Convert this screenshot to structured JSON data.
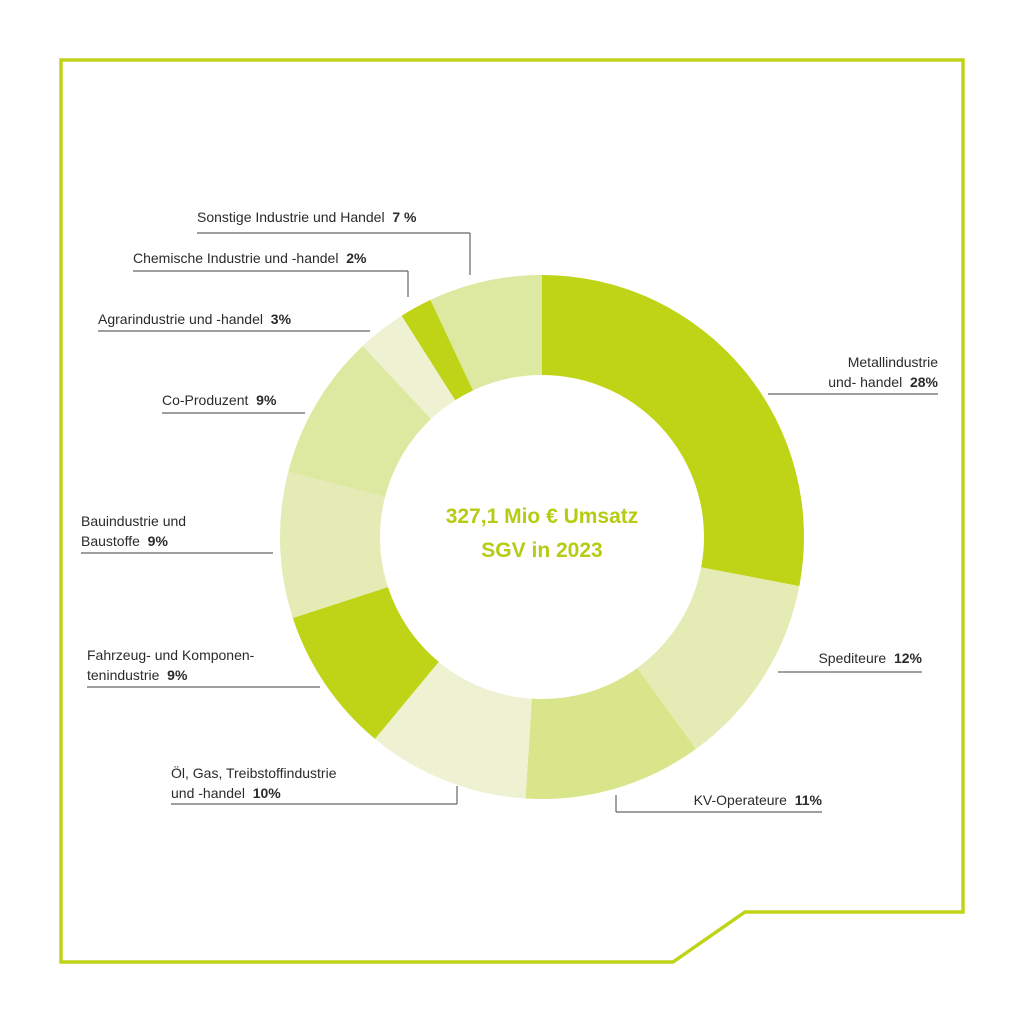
{
  "chart_data": {
    "type": "pie",
    "variant": "donut",
    "center_text": [
      "327,1 Mio € Umsatz",
      "SGV in 2023"
    ],
    "unit": "%",
    "slices": [
      {
        "label_lines": [
          "Metallindustrie",
          "und- handel"
        ],
        "pct_text": "28%",
        "value": 28,
        "color": "#bfd417"
      },
      {
        "label_lines": [
          "Spediteure"
        ],
        "pct_text": "12%",
        "value": 12,
        "color": "#e5ebb4"
      },
      {
        "label_lines": [
          "KV-Operateure"
        ],
        "pct_text": "11%",
        "value": 11,
        "color": "#d8e58a"
      },
      {
        "label_lines": [
          "Öl, Gas, Treibstoffindustrie",
          "und -handel"
        ],
        "pct_text": "10%",
        "value": 10,
        "color": "#eef2d2"
      },
      {
        "label_lines": [
          "Fahrzeug- und Komponen-",
          "tenindustrie"
        ],
        "pct_text": "9%",
        "value": 9,
        "color": "#bfd417"
      },
      {
        "label_lines": [
          "Bauindustrie und",
          "Baustoffe"
        ],
        "pct_text": "9%",
        "value": 9,
        "color": "#e5ebb4"
      },
      {
        "label_lines": [
          "Co-Produzent"
        ],
        "pct_text": "9%",
        "value": 9,
        "color": "#dde8a0"
      },
      {
        "label_lines": [
          "Agrarindustrie und -handel"
        ],
        "pct_text": "3%",
        "value": 3,
        "color": "#eef2d2"
      },
      {
        "label_lines": [
          "Chemische Industrie und -handel"
        ],
        "pct_text": "2%",
        "value": 2,
        "color": "#bfd417"
      },
      {
        "label_lines": [
          "Sonstige Industrie und Handel"
        ],
        "pct_text": "7 %",
        "value": 7,
        "color": "#dde8a0"
      }
    ]
  },
  "colors": {
    "frame": "#bfd417",
    "center_text": "#b5cc12",
    "label_text": "#2b2b2b",
    "leader_line": "#666666"
  }
}
